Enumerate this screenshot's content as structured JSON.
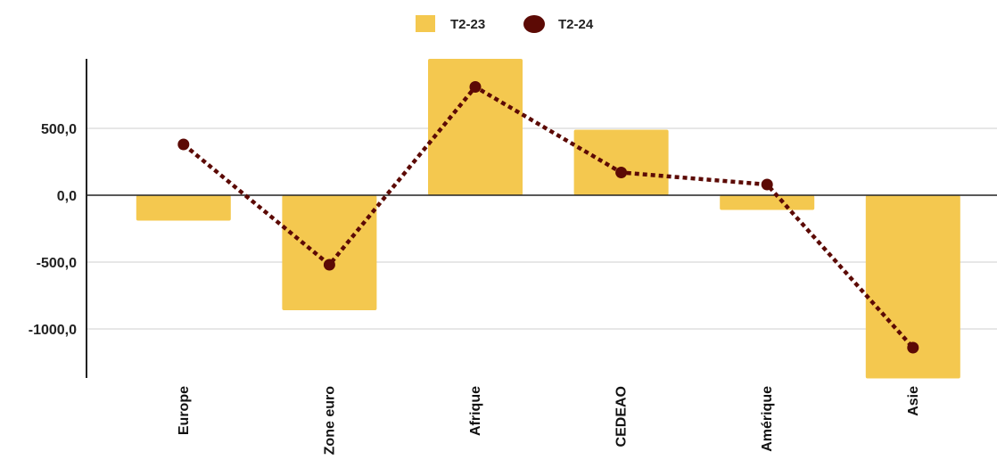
{
  "chart_data": {
    "type": "bar",
    "title": "",
    "xlabel": "",
    "ylabel": "",
    "categories": [
      "Europe",
      "Zone euro",
      "Afrique",
      "CEDEAO",
      "Amérique",
      "Asie"
    ],
    "series": [
      {
        "name": "T2-23",
        "kind": "bar",
        "color": "#f4c84f",
        "values": [
          -190,
          -860,
          1020,
          490,
          -110,
          -1370
        ]
      },
      {
        "name": "T2-24",
        "kind": "line",
        "line_style": "dotted",
        "marker": "circle",
        "color": "#5c0a05",
        "values": [
          380,
          -520,
          810,
          170,
          80,
          -1140
        ]
      }
    ],
    "ylim": [
      -1350,
      1020
    ],
    "y_ticks": [
      500,
      0,
      -500,
      -1000
    ],
    "y_tick_labels": [
      "500,0",
      "0,0",
      "-500,0",
      "-1000,0"
    ],
    "grid": true,
    "legend_position": "top-center"
  }
}
